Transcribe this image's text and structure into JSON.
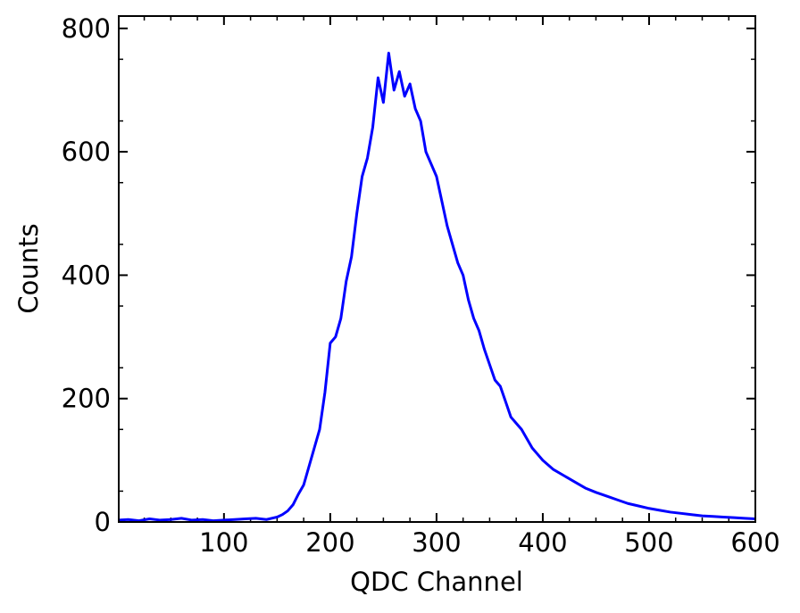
{
  "chart_data": {
    "type": "line",
    "title": "",
    "xlabel": "QDC Channel",
    "ylabel": "Counts",
    "xlim": [
      1,
      600
    ],
    "ylim": [
      0,
      820
    ],
    "x_ticks": [
      100,
      200,
      300,
      400,
      500,
      600
    ],
    "y_ticks": [
      0,
      200,
      400,
      600,
      800
    ],
    "x_tick_labels": [
      "100",
      "200",
      "300",
      "400",
      "500",
      "600"
    ],
    "y_tick_labels": [
      "0",
      "200",
      "400",
      "600",
      "800"
    ],
    "grid": false,
    "legend": "none",
    "series": [
      {
        "color": "#0000ff",
        "x": [
          1,
          10,
          20,
          30,
          40,
          50,
          60,
          70,
          80,
          90,
          100,
          110,
          120,
          130,
          140,
          150,
          155,
          160,
          165,
          170,
          175,
          180,
          185,
          190,
          195,
          200,
          205,
          210,
          215,
          220,
          225,
          230,
          235,
          240,
          245,
          250,
          255,
          260,
          265,
          270,
          275,
          280,
          285,
          290,
          295,
          300,
          305,
          310,
          315,
          320,
          325,
          330,
          335,
          340,
          345,
          350,
          355,
          360,
          365,
          370,
          375,
          380,
          385,
          390,
          395,
          400,
          410,
          420,
          430,
          440,
          450,
          460,
          470,
          480,
          490,
          500,
          510,
          520,
          530,
          540,
          550,
          560,
          570,
          580,
          590,
          600
        ],
        "y": [
          3,
          4,
          2,
          5,
          3,
          4,
          6,
          3,
          4,
          2,
          3,
          4,
          5,
          6,
          4,
          8,
          12,
          18,
          28,
          45,
          60,
          90,
          120,
          150,
          210,
          290,
          300,
          330,
          390,
          430,
          500,
          560,
          590,
          640,
          720,
          680,
          760,
          700,
          730,
          690,
          710,
          670,
          650,
          600,
          580,
          560,
          520,
          480,
          450,
          420,
          400,
          360,
          330,
          310,
          280,
          255,
          230,
          220,
          195,
          170,
          160,
          150,
          135,
          120,
          110,
          100,
          85,
          75,
          65,
          55,
          48,
          42,
          36,
          30,
          26,
          22,
          19,
          16,
          14,
          12,
          10,
          9,
          8,
          7,
          6,
          5
        ]
      }
    ]
  }
}
